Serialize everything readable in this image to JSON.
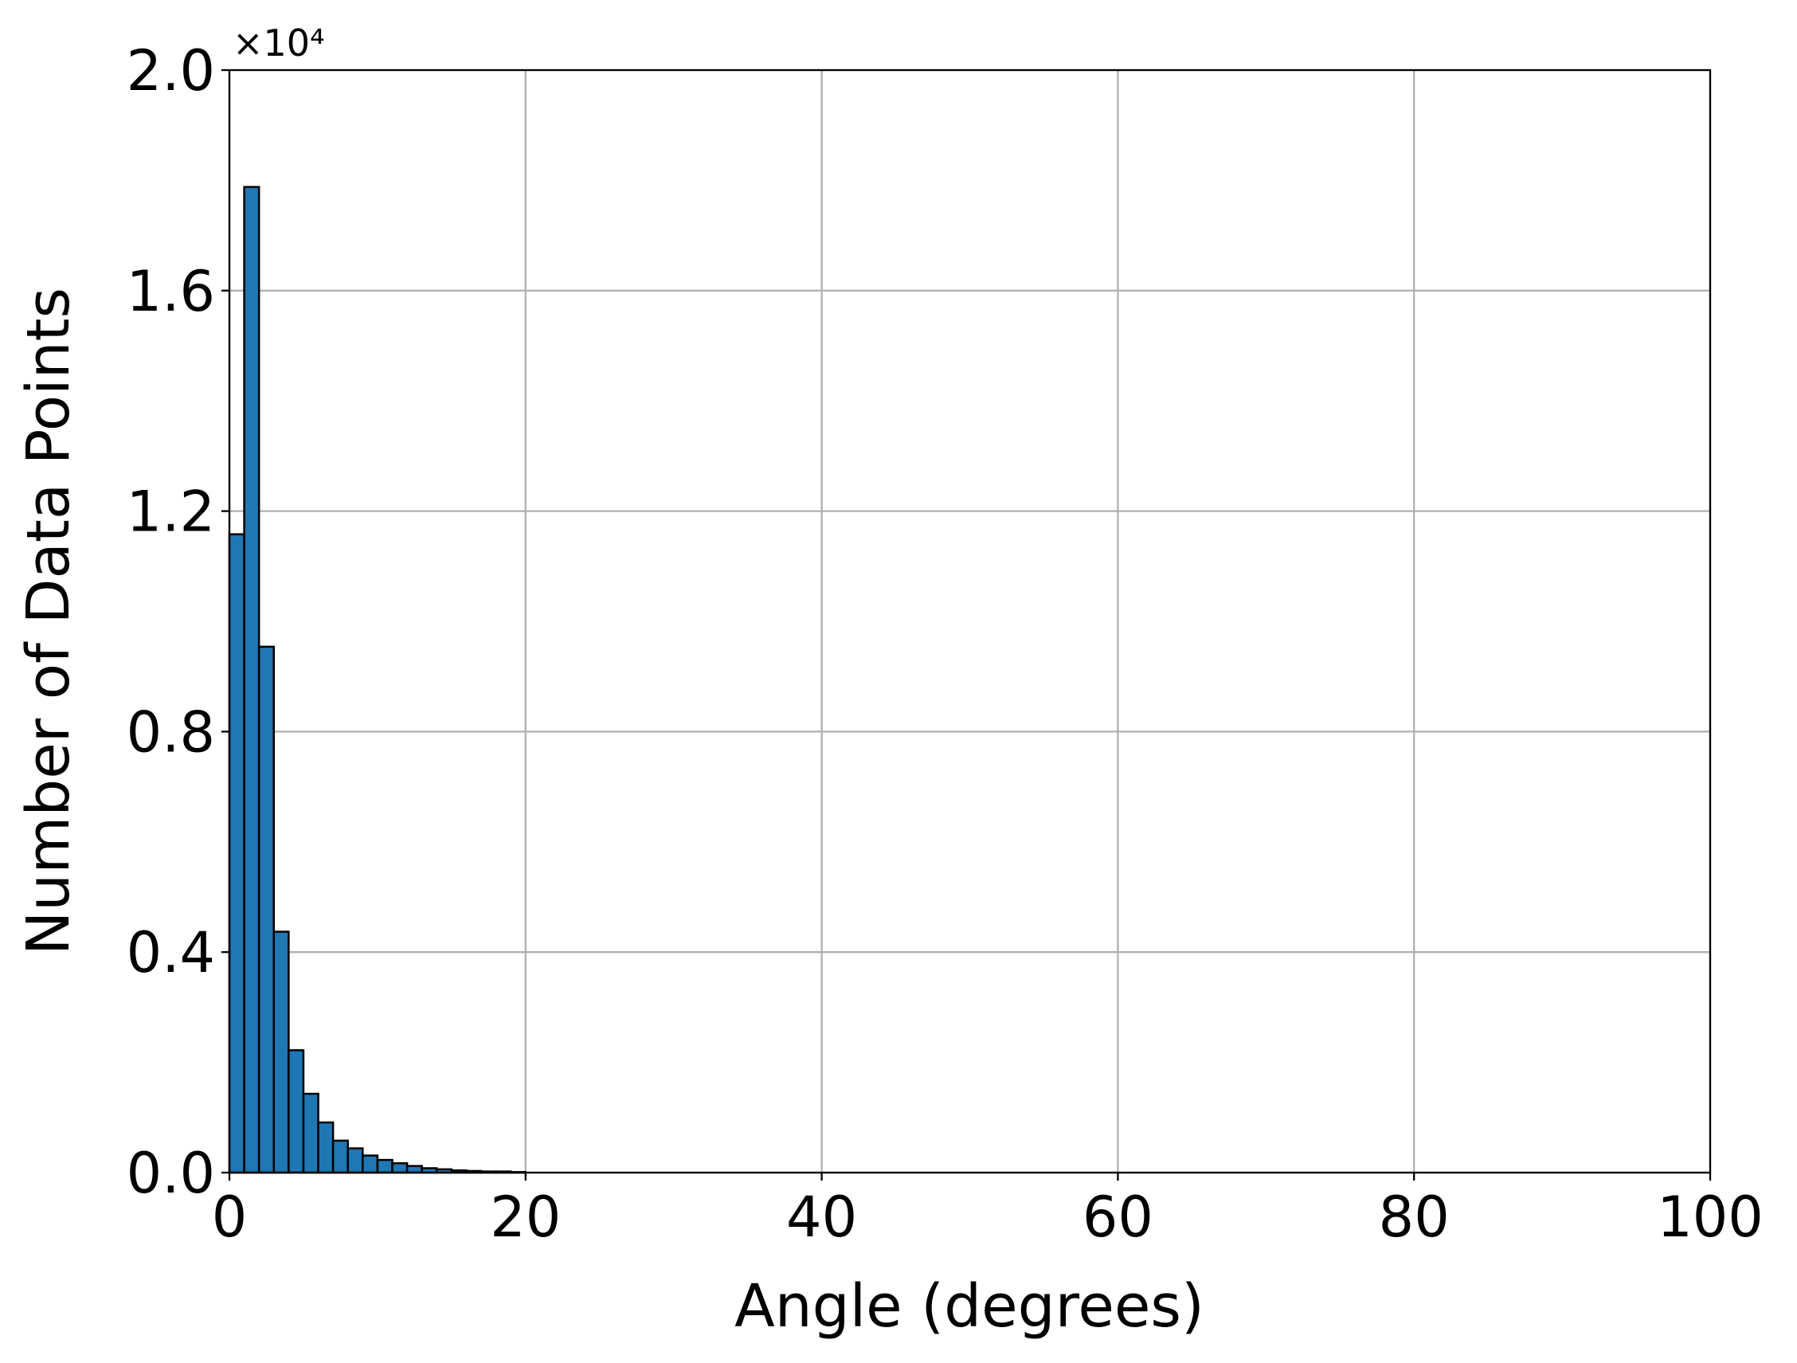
{
  "chart_data": {
    "type": "histogram",
    "xlabel": "Angle (degrees)",
    "ylabel": "Number of Data Points",
    "y_offset_text": "×10⁴",
    "bins": [
      0,
      1,
      2,
      3,
      4,
      5,
      6,
      7,
      8,
      9,
      10,
      11,
      12,
      13,
      14,
      15,
      16,
      17,
      18,
      19,
      20
    ],
    "counts": [
      1.158,
      1.788,
      0.954,
      0.437,
      0.222,
      0.143,
      0.091,
      0.058,
      0.044,
      0.031,
      0.023,
      0.017,
      0.012,
      0.008,
      0.006,
      0.004,
      0.003,
      0.002,
      0.002,
      0.001
    ],
    "color": "#1f77b4",
    "edgecolor": "#000000",
    "xlim": [
      0,
      100
    ],
    "xticks": [
      0,
      20,
      40,
      60,
      80,
      100
    ],
    "ylim": [
      0,
      2.0
    ],
    "yticks": [
      {
        "value": 0,
        "label": "0.0"
      },
      0.4,
      0.8,
      1.2,
      1.6,
      {
        "value": 2.0,
        "label": "2.0"
      }
    ],
    "grid": true
  }
}
